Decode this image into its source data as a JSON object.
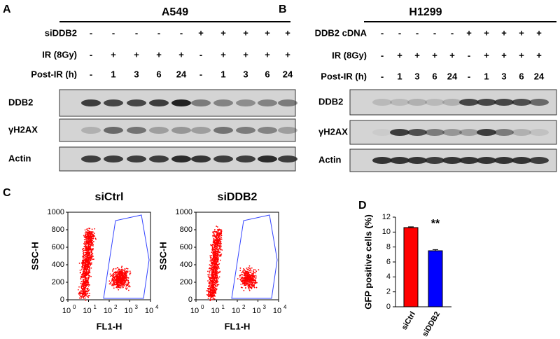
{
  "panel_labels": [
    "A",
    "B",
    "C",
    "D"
  ],
  "panels": {
    "A": {
      "cell_line": "A549",
      "rows": [
        {
          "label": "siDDB2",
          "values": [
            "-",
            "-",
            "-",
            "-",
            "-",
            "+",
            "+",
            "+",
            "+",
            "+"
          ]
        },
        {
          "label": "IR (8Gy)",
          "values": [
            "-",
            "+",
            "+",
            "+",
            "+",
            "-",
            "+",
            "+",
            "+",
            "+"
          ]
        },
        {
          "label": "Post-IR (h)",
          "values": [
            "-",
            "1",
            "3",
            "6",
            "24",
            "-",
            "1",
            "3",
            "6",
            "24"
          ]
        }
      ],
      "blots": [
        "DDB2",
        "γH2AX",
        "Actin"
      ]
    },
    "B": {
      "cell_line": "H1299",
      "rows": [
        {
          "label": "DDB2 cDNA",
          "values": [
            "-",
            "-",
            "-",
            "-",
            "-",
            "+",
            "+",
            "+",
            "+",
            "+"
          ]
        },
        {
          "label": "IR (8Gy)",
          "values": [
            "-",
            "+",
            "+",
            "+",
            "+",
            "-",
            "+",
            "+",
            "+",
            "+"
          ]
        },
        {
          "label": "Post-IR (h)",
          "values": [
            "-",
            "1",
            "3",
            "6",
            "24",
            "-",
            "1",
            "3",
            "6",
            "24"
          ]
        }
      ],
      "blots": [
        "DDB2",
        "γH2AX",
        "Actin"
      ]
    },
    "C": {
      "plots": [
        {
          "title": "siCtrl"
        },
        {
          "title": "siDDB2"
        }
      ],
      "y_label": "SSC-H",
      "x_label": "FL1-H",
      "yticks": [
        0,
        200,
        400,
        600,
        800,
        1000
      ],
      "xticks": [
        {
          "value": 1,
          "label": "10",
          "exponent": "0"
        },
        {
          "value": 10,
          "label": "10",
          "exponent": "1"
        },
        {
          "value": 100,
          "label": "10",
          "exponent": "2"
        },
        {
          "value": 1000,
          "label": "10",
          "exponent": "3"
        },
        {
          "value": 10000,
          "label": "10",
          "exponent": "4"
        }
      ]
    }
  },
  "chart_data": {
    "type": "bar",
    "y_label": "GFP positive cells (%)",
    "categories": [
      "siCtrl",
      "siDDB2"
    ],
    "values": [
      10.6,
      7.5
    ],
    "errors": [
      0.1,
      0.15
    ],
    "colors": [
      "#ff0000",
      "#0000ff"
    ],
    "annotation": "**",
    "ylim": [
      0,
      12
    ],
    "yticks": [
      0,
      2,
      4,
      6,
      8,
      10,
      12
    ]
  }
}
